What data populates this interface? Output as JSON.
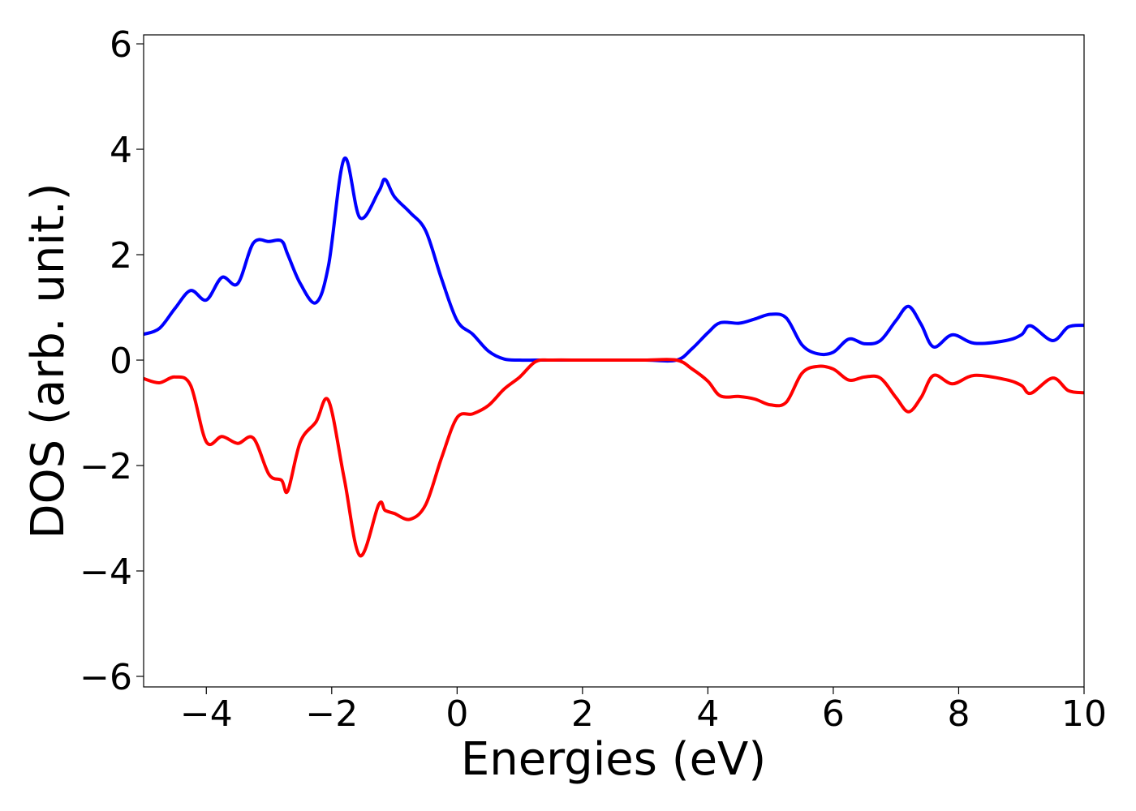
{
  "chart_data": {
    "type": "line",
    "xlabel": "Energies (eV)",
    "ylabel": "DOS (arb. unit.)",
    "x": [
      -5,
      -4.75,
      -4.5,
      -4.25,
      -4,
      -3.75,
      -3.5,
      -3.25,
      -3,
      -2.8,
      -2.7,
      -2.5,
      -2.25,
      -2.05,
      -1.8,
      -1.55,
      -1.25,
      -1.15,
      -1,
      -0.75,
      -0.5,
      -0.25,
      0,
      0.25,
      0.5,
      0.75,
      1,
      1.25,
      1.5,
      2,
      2.5,
      3,
      3.5,
      3.75,
      4,
      4.2,
      4.5,
      4.75,
      5,
      5.25,
      5.5,
      5.75,
      6,
      6.25,
      6.5,
      6.75,
      7,
      7.2,
      7.4,
      7.6,
      7.9,
      8.25,
      8.75,
      9,
      9.15,
      9.5,
      9.75,
      10
    ],
    "series": [
      {
        "color": "#0000ff",
        "values": [
          0.49,
          0.6,
          0.98,
          1.32,
          1.14,
          1.57,
          1.45,
          2.22,
          2.25,
          2.26,
          2.0,
          1.45,
          1.09,
          1.8,
          3.82,
          2.7,
          3.2,
          3.43,
          3.1,
          2.8,
          2.45,
          1.55,
          0.75,
          0.49,
          0.17,
          0.02,
          0,
          0,
          0,
          0,
          0,
          0,
          0,
          0.22,
          0.52,
          0.71,
          0.7,
          0.78,
          0.87,
          0.8,
          0.29,
          0.12,
          0.15,
          0.4,
          0.31,
          0.37,
          0.75,
          1.02,
          0.68,
          0.25,
          0.48,
          0.32,
          0.37,
          0.48,
          0.65,
          0.37,
          0.63,
          0.66
        ]
      },
      {
        "color": "#ff0000",
        "values": [
          -0.35,
          -0.43,
          -0.32,
          -0.48,
          -1.55,
          -1.45,
          -1.58,
          -1.48,
          -2.17,
          -2.28,
          -2.48,
          -1.55,
          -1.17,
          -0.77,
          -2.25,
          -3.71,
          -2.74,
          -2.85,
          -2.91,
          -3.02,
          -2.74,
          -1.86,
          -1.09,
          -1.02,
          -0.86,
          -0.55,
          -0.32,
          -0.03,
          0,
          0,
          0,
          0,
          0,
          -0.17,
          -0.4,
          -0.68,
          -0.69,
          -0.74,
          -0.85,
          -0.8,
          -0.25,
          -0.12,
          -0.17,
          -0.38,
          -0.32,
          -0.34,
          -0.71,
          -0.98,
          -0.71,
          -0.29,
          -0.45,
          -0.29,
          -0.37,
          -0.48,
          -0.63,
          -0.34,
          -0.58,
          -0.62
        ]
      }
    ],
    "xlim": [
      -5,
      10
    ],
    "ylim": [
      -6.2,
      6.17
    ],
    "xticks": [
      {
        "value": -4,
        "label": "−4"
      },
      {
        "value": -2,
        "label": "−2"
      },
      0,
      2,
      4,
      6,
      8,
      10
    ],
    "yticks": [
      {
        "value": -6,
        "label": "−6"
      },
      {
        "value": -4,
        "label": "−4"
      },
      {
        "value": -2,
        "label": "−2"
      },
      0,
      2,
      4,
      6
    ],
    "grid": false
  }
}
